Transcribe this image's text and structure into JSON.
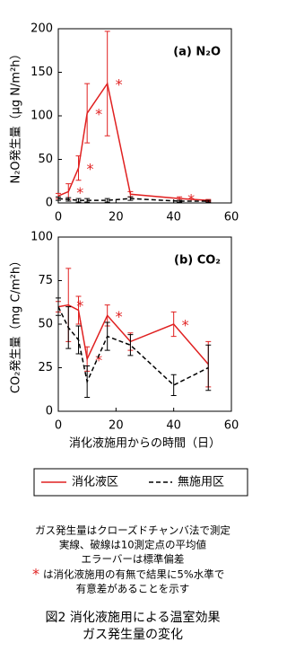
{
  "chart_data": [
    {
      "type": "line",
      "panel_label": "(a) N₂O",
      "ylabel": "N₂O発生量（μg N/m²h）",
      "xlim": [
        0,
        60
      ],
      "xticks": [
        0,
        20,
        40,
        60
      ],
      "ylim": [
        0,
        200
      ],
      "yticks": [
        0,
        50,
        100,
        150,
        200
      ],
      "significance_mark": "*",
      "x": [
        0,
        3.5,
        7,
        10,
        17,
        25,
        42,
        52
      ],
      "series": [
        {
          "name": "消化液区",
          "color": "#e02020",
          "dash": false,
          "values": [
            8,
            13,
            40,
            103,
            137,
            10,
            5,
            3
          ],
          "errors": [
            3,
            9,
            14,
            34,
            60,
            3,
            2,
            1
          ],
          "significant": [
            false,
            true,
            true,
            true,
            true,
            false,
            true,
            false
          ]
        },
        {
          "name": "無施用区",
          "color": "#000000",
          "dash": true,
          "values": [
            5,
            4,
            3,
            3,
            3,
            5,
            2,
            2
          ],
          "errors": [
            2,
            2,
            2,
            2,
            2,
            2,
            1,
            1
          ],
          "significant": [
            false,
            false,
            false,
            false,
            false,
            false,
            false,
            false
          ]
        }
      ]
    },
    {
      "type": "line",
      "panel_label": "(b) CO₂",
      "ylabel": "CO₂発生量（mg C/m²h）",
      "xlabel": "消化液施用からの時間（日）",
      "xlim": [
        0,
        60
      ],
      "xticks": [
        0,
        20,
        40,
        60
      ],
      "ylim": [
        0,
        100
      ],
      "yticks": [
        0,
        25,
        50,
        75,
        100
      ],
      "significance_mark": "*",
      "x": [
        0,
        3.5,
        7,
        10,
        17,
        25,
        40,
        52
      ],
      "series": [
        {
          "name": "消化液区",
          "color": "#e02020",
          "dash": false,
          "values": [
            60,
            61,
            58,
            30,
            55,
            40,
            50,
            27
          ],
          "errors": [
            3,
            21,
            8,
            7,
            6,
            5,
            7,
            13
          ],
          "significant": [
            false,
            true,
            false,
            true,
            true,
            false,
            true,
            false
          ]
        },
        {
          "name": "無施用区",
          "color": "#000000",
          "dash": true,
          "values": [
            60,
            48,
            41,
            17,
            43,
            38,
            15,
            25
          ],
          "errors": [
            5,
            12,
            8,
            9,
            8,
            6,
            6,
            13
          ],
          "significant": [
            false,
            false,
            false,
            false,
            false,
            false,
            false,
            false
          ]
        }
      ]
    }
  ],
  "notes": [
    "ガス発生量はクローズドチャンバ法で測定",
    "実線、破線は10測定点の平均値",
    "エラーバーは標準偏差"
  ],
  "significance_note": {
    "mark": "*",
    "lines": [
      "は消化液施用の有無で結果に5%水準で",
      "有意差があることを示す"
    ]
  },
  "caption": [
    "図2 消化液施用による温室効果",
    "ガス発生量の変化"
  ]
}
